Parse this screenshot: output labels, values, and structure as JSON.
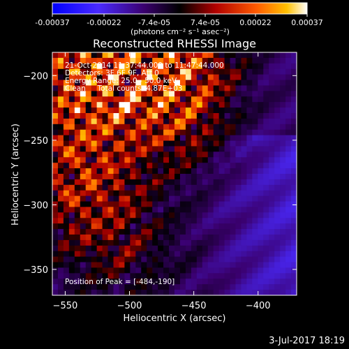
{
  "colorbar": {
    "ticks": [
      "-0.00037",
      "-0.00022",
      "-7.4e-05",
      "7.4e-05",
      "0.00022",
      "0.00037"
    ],
    "tick_values": [
      -0.00037,
      -0.00022,
      -7.4e-05,
      7.4e-05,
      0.00022,
      0.00037
    ],
    "unit_label": "(photons cm⁻² s⁻¹ asec⁻²)",
    "range": [
      -0.00037,
      0.00037
    ]
  },
  "chart_data": {
    "type": "heatmap",
    "title": "Reconstructed RHESSI Image",
    "xlabel": "Heliocentric X (arcsec)",
    "ylabel": "Heliocentric Y (arcsec)",
    "xlim": [
      -560,
      -370
    ],
    "ylim": [
      -370,
      -182
    ],
    "x_ticks": [
      -550,
      -500,
      -450,
      -400
    ],
    "y_ticks": [
      -350,
      -300,
      -250,
      -200
    ],
    "x_tick_labels": [
      "-550",
      "-500",
      "-450",
      "-400"
    ],
    "y_tick_labels": [
      "-350",
      "-300",
      "-250",
      "-200"
    ],
    "peak_position": [
      -484,
      -190
    ],
    "annotations": [
      "21-Oct-2014 11:37:44.000 to 11:47:44.000",
      "Detectors: 3F 6F 9F, Att 0",
      "Energy Range: 25.0 - 50.0 keV",
      "Clean     Total counts: 4.87E+03"
    ],
    "peak_annotation": "Position of Peak = [-484,-190]",
    "colormap": [
      "#0000ff",
      "#4a2aff",
      "#3a0070",
      "#000000",
      "#a00000",
      "#ff3000",
      "#ff9000",
      "#ffffff"
    ]
  },
  "footer": {
    "date": "3-Jul-2017 18:19"
  }
}
